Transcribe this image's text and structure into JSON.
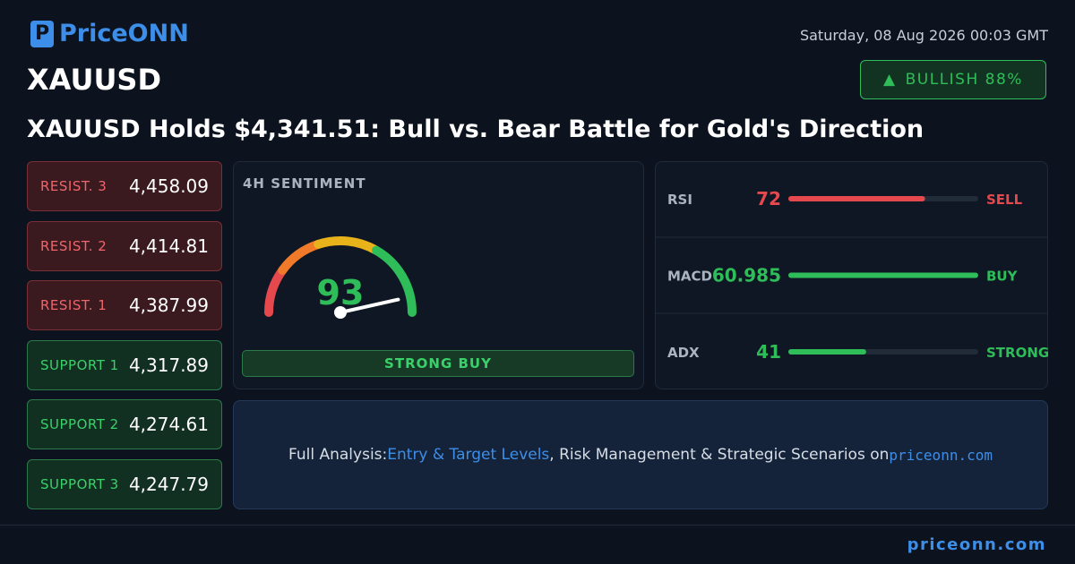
{
  "header": {
    "logo": "PriceONN",
    "date": "Saturday, 08 Aug 2026 00:03 GMT",
    "symbol": "XAUUSD",
    "badge": "BULLISH 88%"
  },
  "headline": "XAUUSD Holds $4,341.51: Bull vs. Bear Battle for Gold's Direction",
  "resistances": [
    {
      "label": "RESIST. 3",
      "value": "4,458.09"
    },
    {
      "label": "RESIST. 2",
      "value": "4,414.81"
    },
    {
      "label": "RESIST. 1",
      "value": "4,387.99"
    }
  ],
  "supports": [
    {
      "label": "SUPPORT 1",
      "value": "4,317.89"
    },
    {
      "label": "SUPPORT 2",
      "value": "4,274.61"
    },
    {
      "label": "SUPPORT 3",
      "value": "4,247.79"
    }
  ],
  "sentiment": {
    "title": "4H SENTIMENT",
    "score": 93,
    "range": [
      0,
      100
    ],
    "signal": "STRONG BUY"
  },
  "indicators": [
    {
      "name": "RSI",
      "value": 72,
      "range": [
        0,
        100
      ],
      "signal": "SELL",
      "color": "#e5484d"
    },
    {
      "name": "MACD",
      "value": 60.985,
      "range": [
        0,
        61
      ],
      "signal": "BUY",
      "color": "#2ebd59"
    },
    {
      "name": "ADX",
      "value": 41,
      "range": [
        0,
        100
      ],
      "signal": "STRONG",
      "color": "#2ebd59"
    }
  ],
  "cta": {
    "prefix": "Full Analysis:",
    "link": "Entry & Target Levels",
    "middle": ", Risk Management & Strategic Scenarios on",
    "site": "priceonn.com"
  },
  "footer": "priceonn.com"
}
